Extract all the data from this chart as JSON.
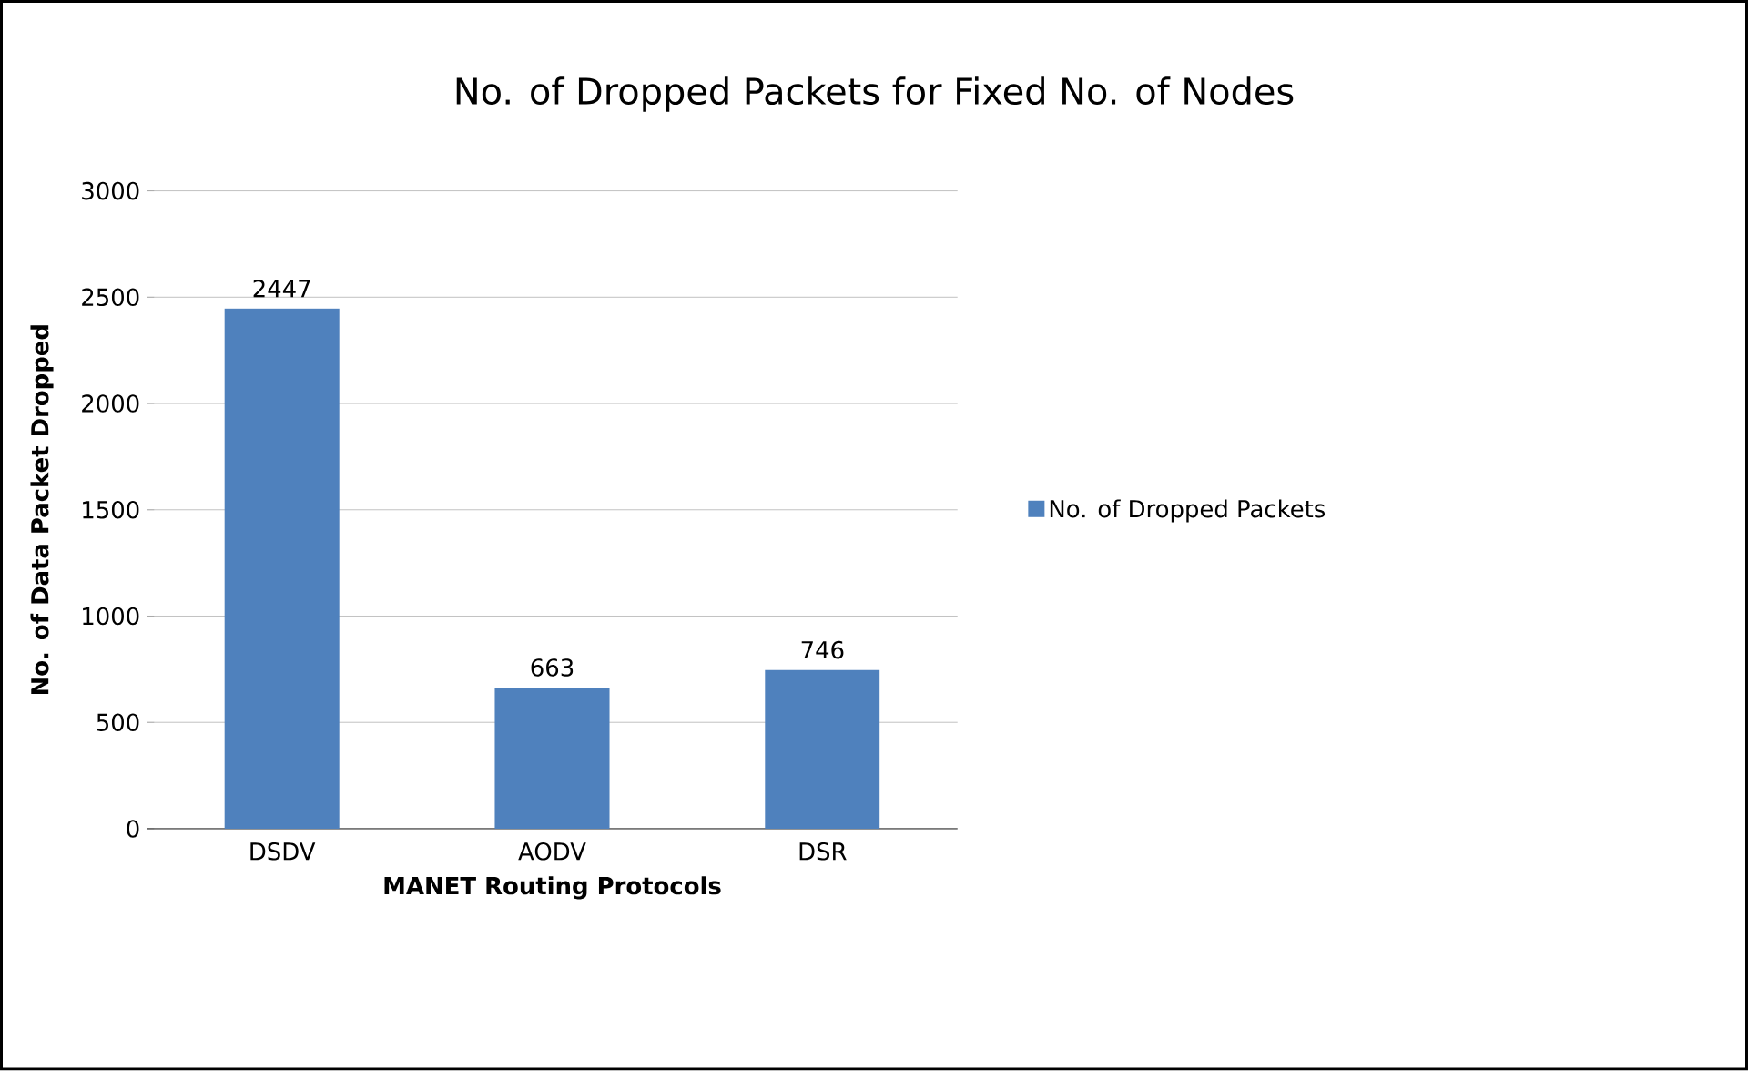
{
  "chart_data": {
    "type": "bar",
    "title": "No. of Dropped Packets for Fixed No. of Nodes",
    "xlabel": "MANET Routing Protocols",
    "ylabel": "No. of Data  Packet  Dropped",
    "categories": [
      "DSDV",
      "AODV",
      "DSR"
    ],
    "series": [
      {
        "name": "No. of Dropped Packets",
        "color": "#4f81bd",
        "values": [
          2447,
          663,
          746
        ]
      }
    ],
    "ylim": [
      0,
      3000
    ],
    "yticks": [
      0,
      500,
      1000,
      1500,
      2000,
      2500,
      3000
    ],
    "grid": "y",
    "legend": "right",
    "data_labels": true
  }
}
